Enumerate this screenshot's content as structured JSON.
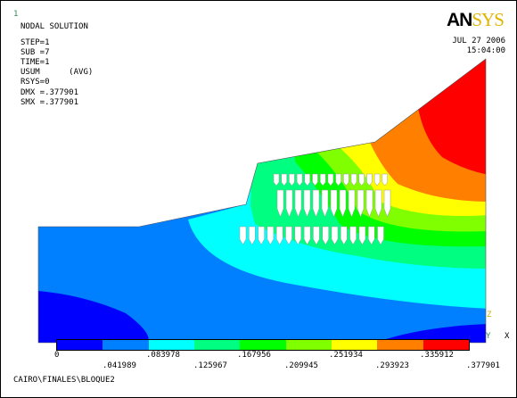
{
  "window_number": "1",
  "header": {
    "title": "NODAL SOLUTION",
    "lines": [
      "STEP=1",
      "SUB =7",
      "TIME=1",
      "USUM      (AVG)",
      "RSYS=0",
      "DMX =.377901",
      "SMX =.377901"
    ]
  },
  "logo": {
    "part1": "AN",
    "part2": "SYS"
  },
  "date": "JUL 27 2006",
  "time": "15:04:00",
  "triad": {
    "z": "Z",
    "y": "Y",
    "x": "X"
  },
  "legend": {
    "colors": [
      "#0000ff",
      "#0080ff",
      "#00ffff",
      "#00ff80",
      "#00ff00",
      "#80ff00",
      "#ffff00",
      "#ff8000",
      "#ff0000"
    ],
    "labels_top": [
      "0",
      ".083978",
      ".167956",
      ".251934",
      ".335912"
    ],
    "labels_bottom": [
      ".041989",
      ".125967",
      ".209945",
      ".293923",
      ".377901"
    ]
  },
  "footer": "CAIRO\\FINALES\\BLOQUE2"
}
